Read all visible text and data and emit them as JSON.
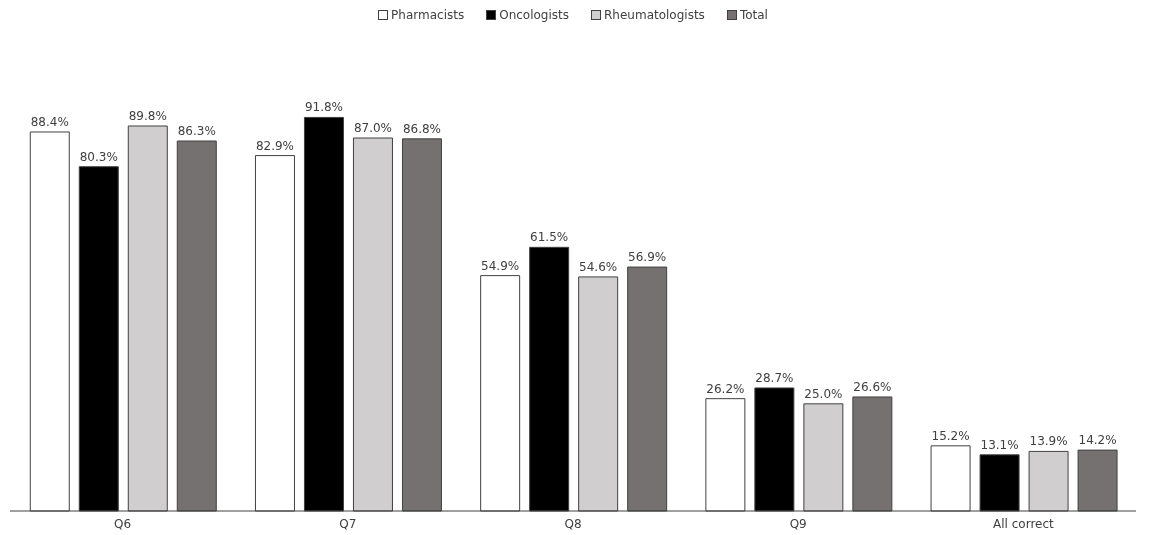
{
  "chart_data": {
    "type": "bar",
    "categories": [
      "Q6",
      "Q7",
      "Q8",
      "Q9",
      "All correct"
    ],
    "series": [
      {
        "name": "Pharmacists",
        "color": "#ffffff",
        "values": [
          88.4,
          82.9,
          54.9,
          26.2,
          15.2
        ],
        "value_labels": [
          "88.4%",
          "82.9%",
          "54.9%",
          "26.2%",
          "15.2%"
        ]
      },
      {
        "name": "Oncologists",
        "color": "#000000",
        "values": [
          80.3,
          91.8,
          61.5,
          28.7,
          13.1
        ],
        "value_labels": [
          "80.3%",
          "91.8%",
          "61.5%",
          "28.7%",
          "13.1%"
        ]
      },
      {
        "name": "Rheumatologists",
        "color": "#d0cece",
        "values": [
          89.8,
          87.0,
          54.6,
          25.0,
          13.9
        ],
        "value_labels": [
          "89.8%",
          "87.0%",
          "54.6%",
          "25.0%",
          "13.9%"
        ]
      },
      {
        "name": "Total",
        "color": "#767171",
        "values": [
          86.3,
          86.8,
          56.9,
          26.6,
          14.2
        ],
        "value_labels": [
          "86.3%",
          "86.8%",
          "56.9%",
          "26.6%",
          "14.2%"
        ]
      }
    ],
    "legend": "top"
  }
}
